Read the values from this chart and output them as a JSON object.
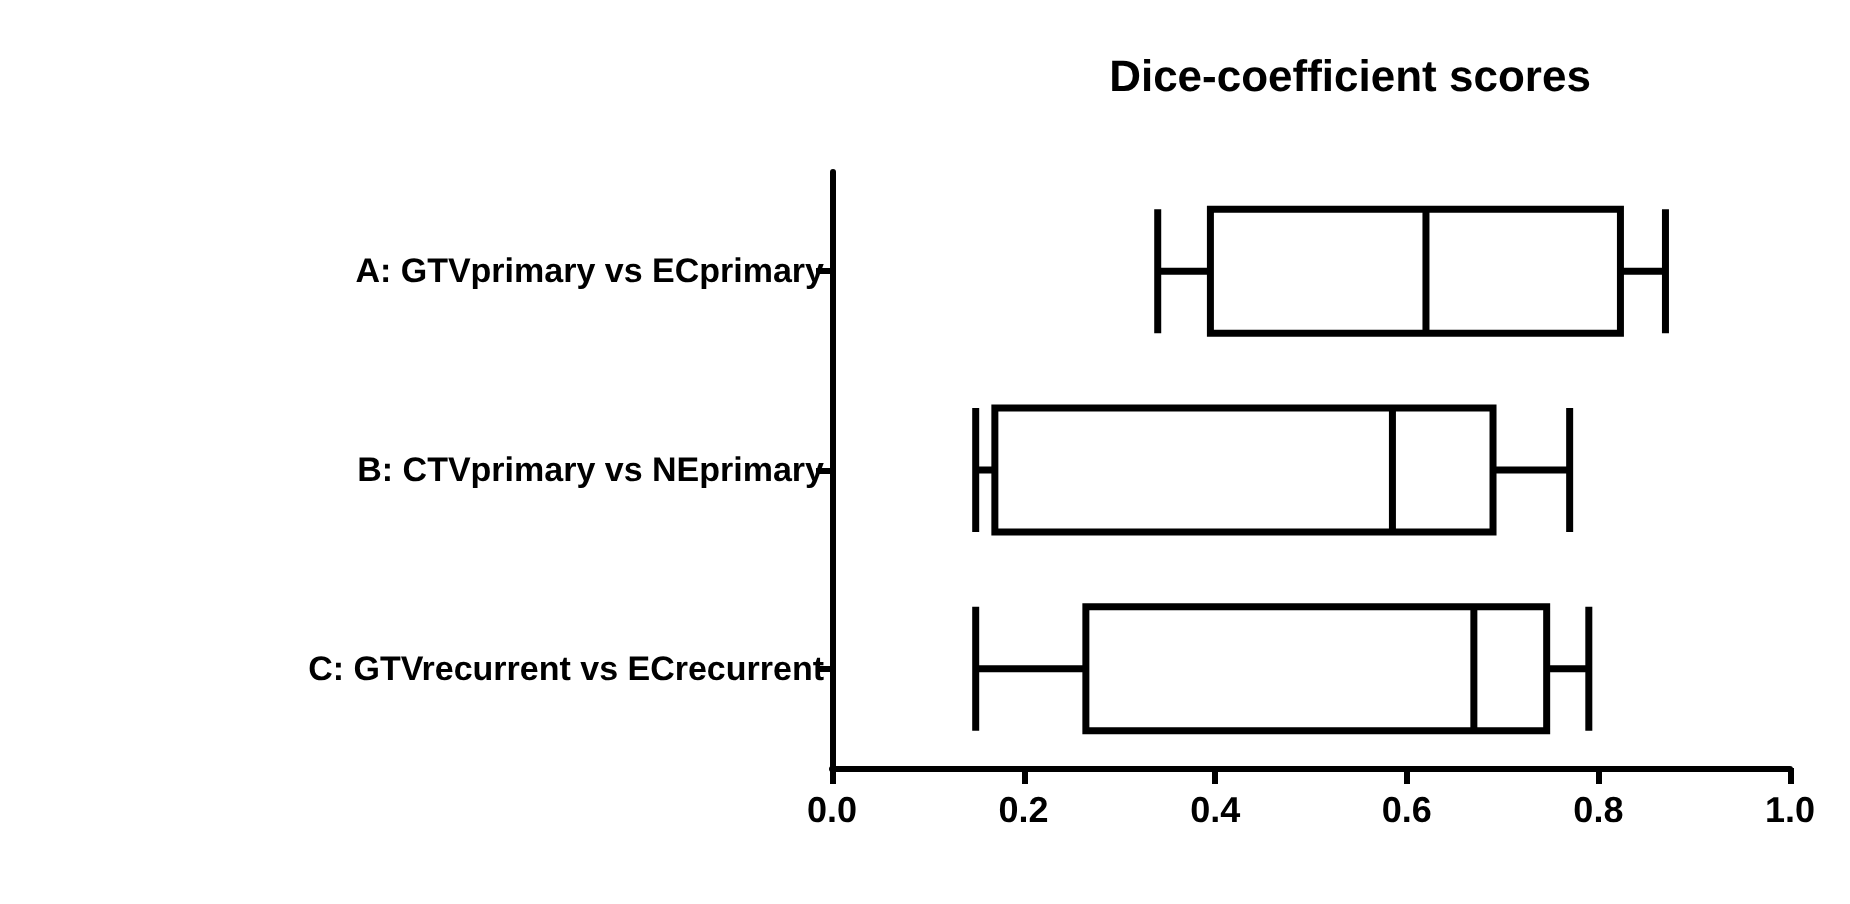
{
  "chart_data": {
    "type": "box",
    "orientation": "horizontal",
    "title": "Dice-coefficient scores",
    "categories": [
      "A: GTVprimary vs ECprimary",
      "B: CTVprimary vs NEprimary",
      "C: GTVrecurrent vs ECrecurrent"
    ],
    "boxes": [
      {
        "low": 0.34,
        "q1": 0.395,
        "median": 0.62,
        "q3": 0.823,
        "high": 0.87
      },
      {
        "low": 0.15,
        "q1": 0.17,
        "median": 0.585,
        "q3": 0.69,
        "high": 0.77
      },
      {
        "low": 0.15,
        "q1": 0.265,
        "median": 0.67,
        "q3": 0.746,
        "high": 0.79
      }
    ],
    "color": "#000000",
    "xlim": [
      0,
      1
    ],
    "xticks": [
      {
        "value": 0,
        "label": "0.0"
      },
      {
        "value": 0.2,
        "label": "0.2"
      },
      {
        "value": 0.4,
        "label": "0.4"
      },
      {
        "value": 0.6,
        "label": "0.6"
      },
      {
        "value": 0.8,
        "label": "0.8"
      },
      {
        "value": 1,
        "label": "1.0"
      }
    ],
    "grid": false
  }
}
